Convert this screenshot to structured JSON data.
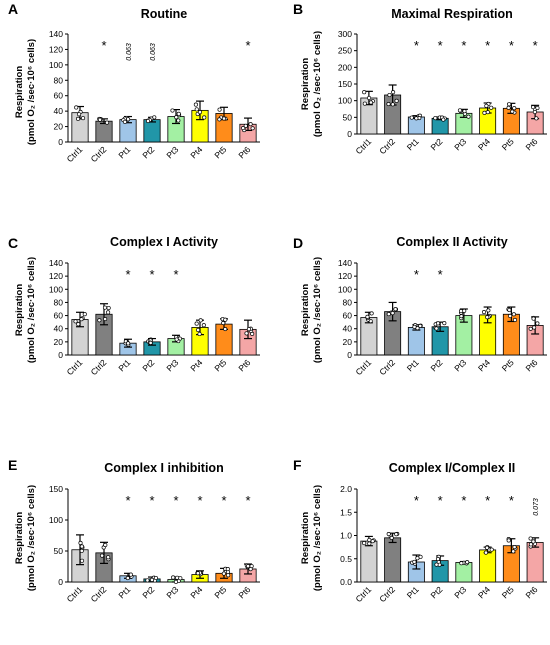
{
  "figure": {
    "ylabel_line1": "Respiration",
    "ylabel_line2": "(pmol O₂ /sec·10⁶ cells)"
  },
  "chart_data": [
    {
      "panel": "A",
      "type": "bar",
      "title": "Routine",
      "categories": [
        "Ctrl1",
        "Ctrl2",
        "Pt1",
        "Pt2",
        "Pt3",
        "Pt4",
        "Pt5",
        "Pt6"
      ],
      "colors": [
        "#d3d3d3",
        "#808080",
        "#9fc5e8",
        "#2196a8",
        "#a3f0a3",
        "#ffff00",
        "#ff8c1a",
        "#f4a6a6"
      ],
      "values": [
        38,
        27,
        29,
        29,
        33,
        41,
        37,
        23
      ],
      "errors": [
        8,
        3,
        4,
        3,
        9,
        12,
        8,
        8
      ],
      "annotations": [
        {
          "cat": 1,
          "text": "*"
        },
        {
          "cat": 2,
          "text": "0.063",
          "rotated": true
        },
        {
          "cat": 3,
          "text": "0.063",
          "rotated": true
        },
        {
          "cat": 7,
          "text": "*"
        }
      ],
      "ylim": [
        0,
        140
      ],
      "yticks": [
        0,
        20,
        40,
        60,
        80,
        100,
        120,
        140
      ]
    },
    {
      "panel": "B",
      "type": "bar",
      "title": "Maximal Respiration",
      "categories": [
        "Ctrl1",
        "Ctrl2",
        "Pt1",
        "Pt2",
        "Pt3",
        "Pt4",
        "Pt5",
        "Pt6"
      ],
      "colors": [
        "#d3d3d3",
        "#808080",
        "#9fc5e8",
        "#2196a8",
        "#a3f0a3",
        "#ffff00",
        "#ff8c1a",
        "#f4a6a6"
      ],
      "values": [
        108,
        117,
        51,
        47,
        62,
        78,
        77,
        66
      ],
      "errors": [
        20,
        30,
        4,
        4,
        12,
        15,
        15,
        20
      ],
      "annotations": [
        {
          "cat": 2,
          "text": "*"
        },
        {
          "cat": 3,
          "text": "*"
        },
        {
          "cat": 4,
          "text": "*"
        },
        {
          "cat": 5,
          "text": "*"
        },
        {
          "cat": 6,
          "text": "*"
        },
        {
          "cat": 7,
          "text": "*"
        }
      ],
      "ylim": [
        0,
        300
      ],
      "yticks": [
        0,
        50,
        100,
        150,
        200,
        250,
        300
      ]
    },
    {
      "panel": "C",
      "type": "bar",
      "title": "Complex I Activity",
      "categories": [
        "Ctrl1",
        "Ctrl2",
        "Pt1",
        "Pt2",
        "Pt3",
        "Pt4",
        "Pt5",
        "Pt6"
      ],
      "colors": [
        "#d3d3d3",
        "#808080",
        "#9fc5e8",
        "#2196a8",
        "#a3f0a3",
        "#ffff00",
        "#ff8c1a",
        "#f4a6a6"
      ],
      "values": [
        54,
        62,
        18,
        20,
        25,
        42,
        47,
        39
      ],
      "errors": [
        11,
        16,
        6,
        5,
        5,
        11,
        8,
        14
      ],
      "annotations": [
        {
          "cat": 2,
          "text": "*"
        },
        {
          "cat": 3,
          "text": "*"
        },
        {
          "cat": 4,
          "text": "*"
        }
      ],
      "ylim": [
        0,
        140
      ],
      "yticks": [
        0,
        20,
        40,
        60,
        80,
        100,
        120,
        140
      ]
    },
    {
      "panel": "D",
      "type": "bar",
      "title": "Complex II Activity",
      "categories": [
        "Ctrl1",
        "Ctrl2",
        "Pt1",
        "Pt2",
        "Pt3",
        "Pt4",
        "Pt5",
        "Pt6"
      ],
      "colors": [
        "#d3d3d3",
        "#808080",
        "#9fc5e8",
        "#2196a8",
        "#a3f0a3",
        "#ffff00",
        "#ff8c1a",
        "#f4a6a6"
      ],
      "values": [
        57,
        66,
        42,
        43,
        60,
        61,
        62,
        45
      ],
      "errors": [
        8,
        14,
        4,
        7,
        10,
        12,
        11,
        13
      ],
      "annotations": [
        {
          "cat": 2,
          "text": "*"
        },
        {
          "cat": 3,
          "text": "*"
        }
      ],
      "ylim": [
        0,
        140
      ],
      "yticks": [
        0,
        20,
        40,
        60,
        80,
        100,
        120,
        140
      ]
    },
    {
      "panel": "E",
      "type": "bar",
      "title": "Complex I inhibition",
      "categories": [
        "Ctrl1",
        "Ctrl2",
        "Pt1",
        "Pt2",
        "Pt3",
        "Pt4",
        "Pt5",
        "Pt6"
      ],
      "colors": [
        "#d3d3d3",
        "#808080",
        "#9fc5e8",
        "#2196a8",
        "#a3f0a3",
        "#ffff00",
        "#ff8c1a",
        "#f4a6a6"
      ],
      "values": [
        52,
        47,
        10,
        5,
        4,
        12,
        14,
        21
      ],
      "errors": [
        24,
        17,
        4,
        3,
        4,
        6,
        8,
        8
      ],
      "annotations": [
        {
          "cat": 2,
          "text": "*"
        },
        {
          "cat": 3,
          "text": "*"
        },
        {
          "cat": 4,
          "text": "*"
        },
        {
          "cat": 5,
          "text": "*"
        },
        {
          "cat": 6,
          "text": "*"
        },
        {
          "cat": 7,
          "text": "*"
        }
      ],
      "ylim": [
        0,
        150
      ],
      "yticks": [
        0,
        50,
        100,
        150
      ]
    },
    {
      "panel": "F",
      "type": "bar",
      "title": "Complex I/Complex II",
      "categories": [
        "Ctrl1",
        "Ctrl2",
        "Pt1",
        "Pt2",
        "Pt3",
        "Pt4",
        "Pt5",
        "Pt6"
      ],
      "colors": [
        "#d3d3d3",
        "#808080",
        "#9fc5e8",
        "#2196a8",
        "#a3f0a3",
        "#ffff00",
        "#ff8c1a",
        "#f4a6a6"
      ],
      "values": [
        0.88,
        0.95,
        0.43,
        0.46,
        0.42,
        0.69,
        0.78,
        0.85
      ],
      "errors": [
        0.1,
        0.1,
        0.15,
        0.1,
        0.02,
        0.06,
        0.15,
        0.1
      ],
      "annotations": [
        {
          "cat": 2,
          "text": "*"
        },
        {
          "cat": 3,
          "text": "*"
        },
        {
          "cat": 4,
          "text": "*"
        },
        {
          "cat": 5,
          "text": "*"
        },
        {
          "cat": 6,
          "text": "*"
        },
        {
          "cat": 7,
          "text": "0.073",
          "rotated": true
        }
      ],
      "ylim": [
        0,
        2.0
      ],
      "yticks": [
        0.0,
        0.5,
        1.0,
        1.5,
        2.0
      ],
      "tick_decimals": 1
    }
  ]
}
